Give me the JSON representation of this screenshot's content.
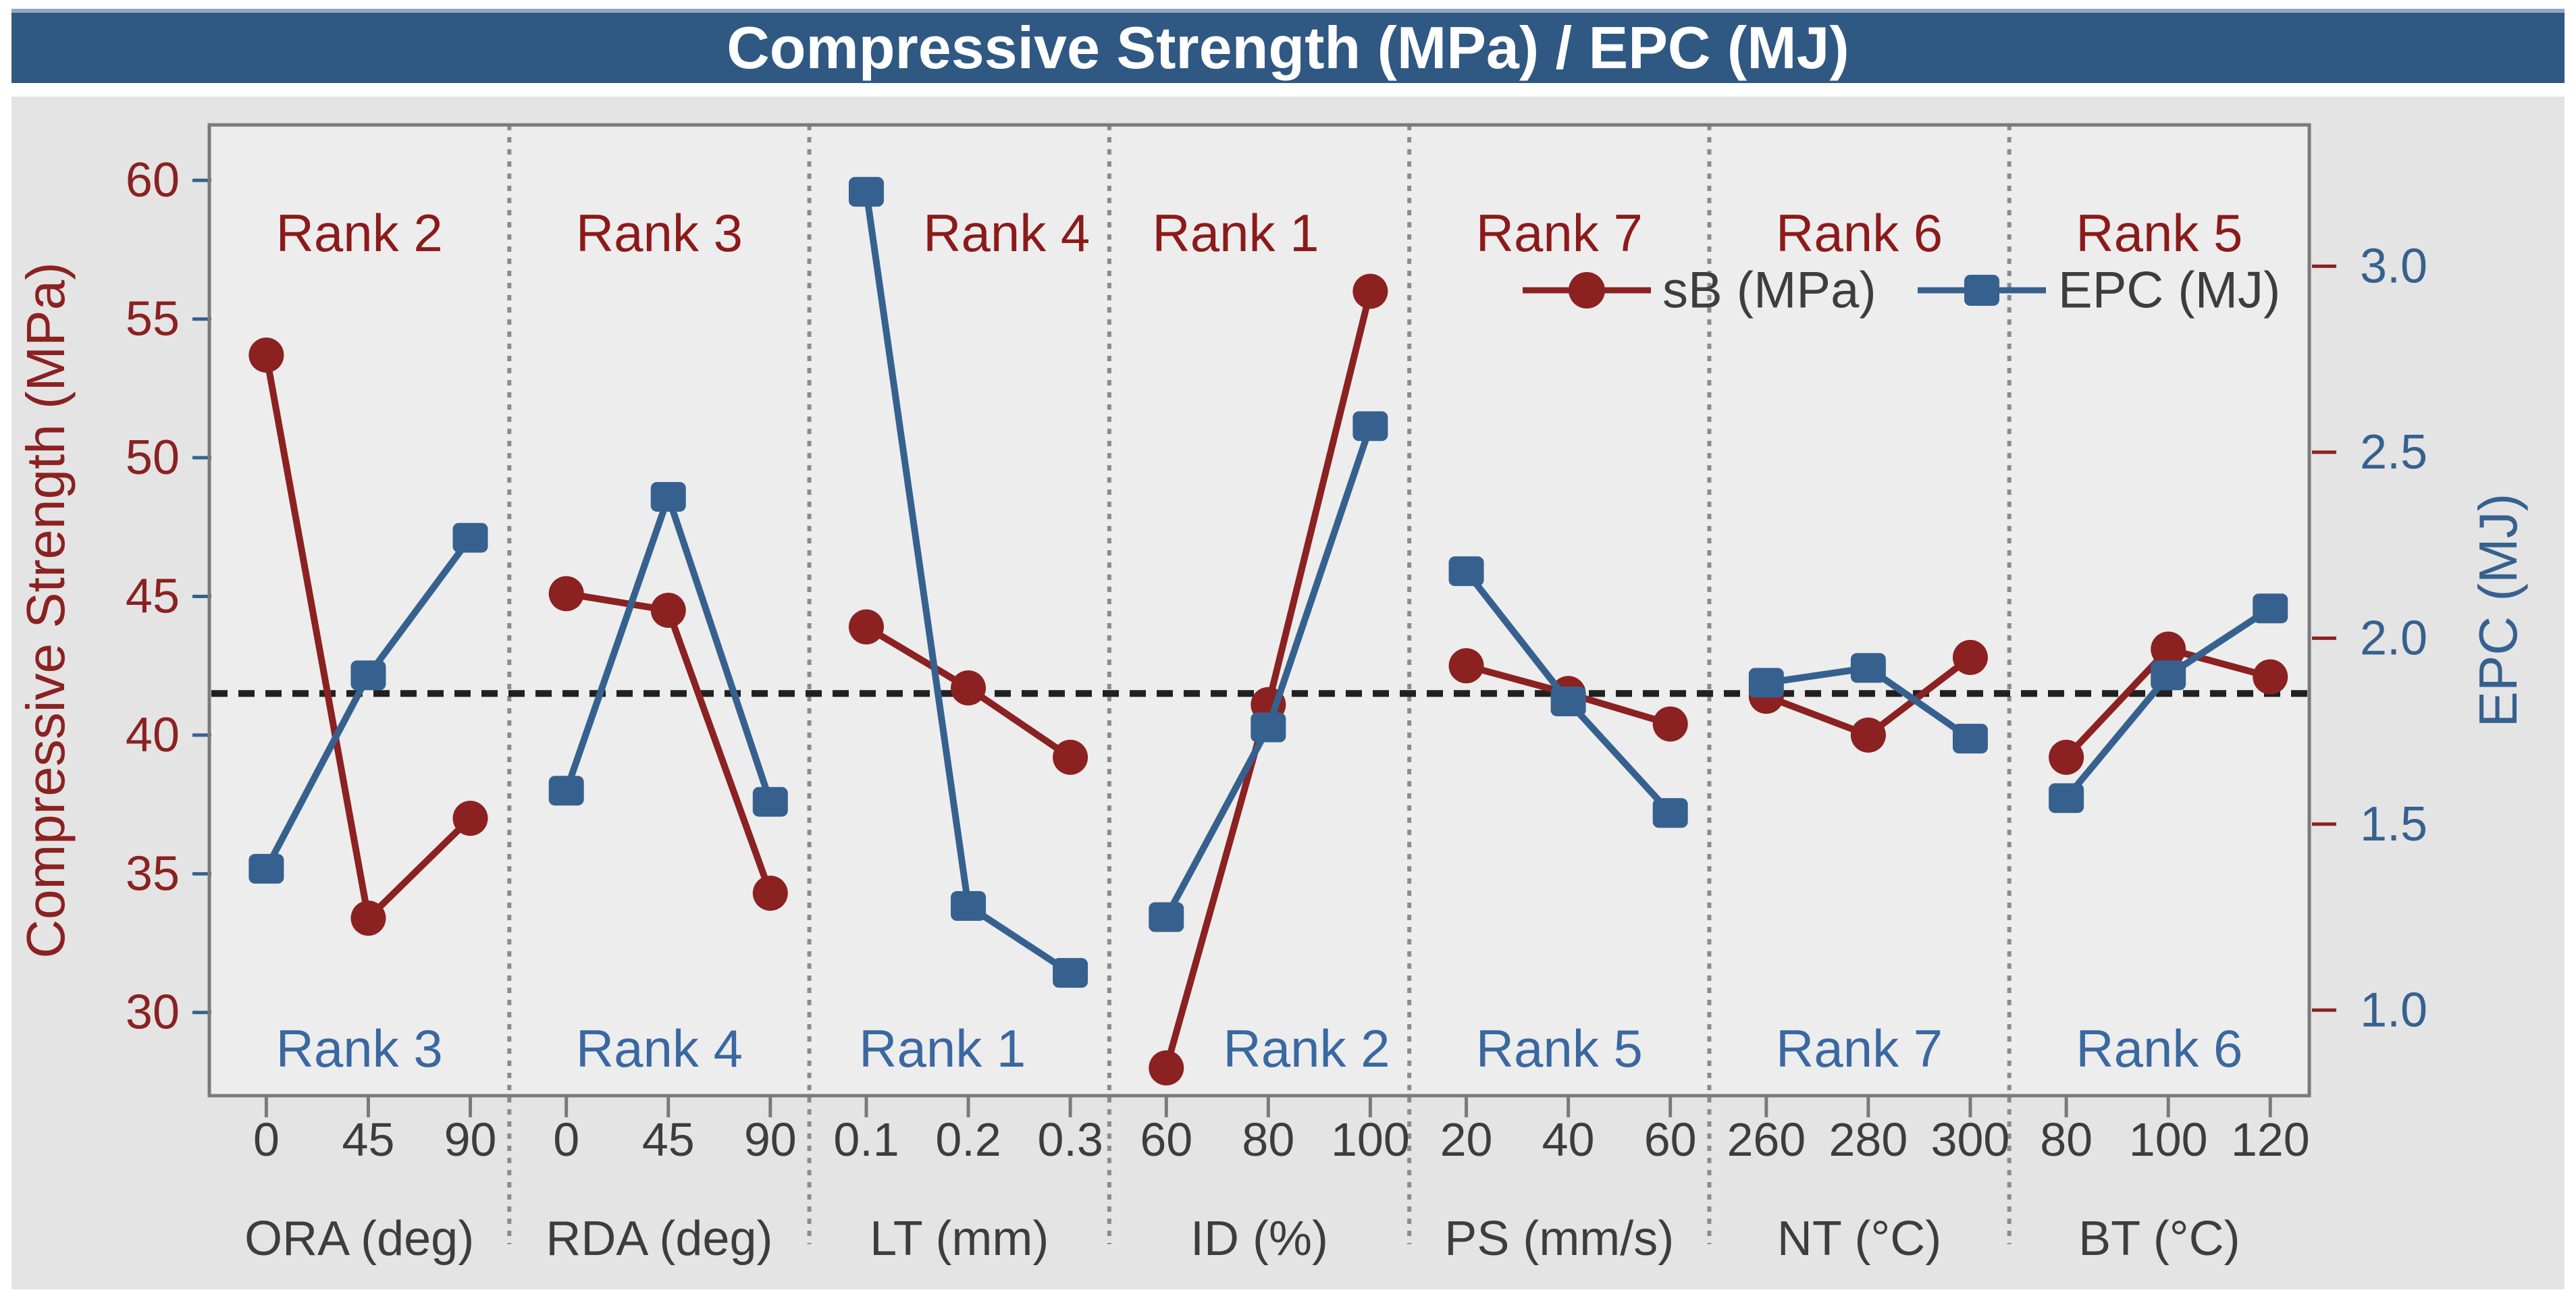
{
  "title": "Compressive Strength (MPa) / EPC (MJ)",
  "colors": {
    "title_bar": "#2F5883",
    "series_sB": "#8B2121",
    "series_EPC": "#36618F",
    "rank_sB": "#8C1A1A",
    "rank_EPC": "#3A68A0",
    "mean_line": "#202020",
    "axis_text": "#3D3D3D",
    "chart_bg": "#E4E4E4",
    "plot_bg": "#EDEDED",
    "frame": "#7A7A7A",
    "separator": "#8C8C8C"
  },
  "left_axis": {
    "label": "Compressive Strength (MPa)",
    "ticks": [
      60,
      55,
      50,
      45,
      40,
      35,
      30
    ]
  },
  "right_axis": {
    "label": "EPC (MJ)",
    "ticks": [
      3.0,
      2.5,
      2.0,
      1.5,
      1.0
    ]
  },
  "legend": [
    {
      "label": "sB (MPa)",
      "marker": "circle"
    },
    {
      "label": "EPC (MJ)",
      "marker": "square"
    }
  ],
  "chart_data": {
    "type": "line",
    "subtype": "main-effects-dual-axis",
    "title": "Compressive Strength (MPa) / EPC (MJ)",
    "ylabel_left": "Compressive Strength (MPa)",
    "ylabel_right": "EPC (MJ)",
    "sB_axis_range": [
      27.0,
      62.0
    ],
    "EPC_axis_range": [
      0.77,
      3.38
    ],
    "grand_mean_sB": 41.5,
    "grand_mean_EPC": 1.85,
    "grid": false,
    "panels": [
      {
        "factor": "ORA (deg)",
        "levels": [
          "0",
          "45",
          "90"
        ],
        "sB": [
          53.7,
          33.4,
          37.0
        ],
        "EPC": [
          1.38,
          1.9,
          2.27
        ],
        "rank_sB": "Rank 2",
        "rank_EPC": "Rank 3"
      },
      {
        "factor": "RDA (deg)",
        "levels": [
          "0",
          "45",
          "90"
        ],
        "sB": [
          45.1,
          44.5,
          34.3
        ],
        "EPC": [
          1.59,
          2.38,
          1.56
        ],
        "rank_sB": "Rank 3",
        "rank_EPC": "Rank 4"
      },
      {
        "factor": "LT (mm)",
        "levels": [
          "0.1",
          "0.2",
          "0.3"
        ],
        "sB": [
          43.9,
          41.7,
          39.2
        ],
        "EPC": [
          3.2,
          1.28,
          1.1
        ],
        "rank_sB": "Rank 4",
        "rank_EPC": "Rank 1"
      },
      {
        "factor": "ID (%)",
        "levels": [
          "60",
          "80",
          "100"
        ],
        "sB": [
          28.0,
          41.1,
          56.0
        ],
        "EPC": [
          1.25,
          1.76,
          2.57
        ],
        "rank_sB": "Rank 1",
        "rank_EPC": "Rank 2"
      },
      {
        "factor": "PS (mm/s)",
        "levels": [
          "20",
          "40",
          "60"
        ],
        "sB": [
          42.5,
          41.5,
          40.4
        ],
        "EPC": [
          2.18,
          1.83,
          1.53
        ],
        "rank_sB": "Rank 7",
        "rank_EPC": "Rank 5"
      },
      {
        "factor": "NT (°C)",
        "levels": [
          "260",
          "280",
          "300"
        ],
        "sB": [
          41.4,
          40.0,
          42.8
        ],
        "EPC": [
          1.88,
          1.92,
          1.73
        ],
        "rank_sB": "Rank 6",
        "rank_EPC": "Rank 7"
      },
      {
        "factor": "BT (°C)",
        "levels": [
          "80",
          "100",
          "120"
        ],
        "sB": [
          39.2,
          43.1,
          42.1
        ],
        "EPC": [
          1.57,
          1.9,
          2.08
        ],
        "rank_sB": "Rank 5",
        "rank_EPC": "Rank 6"
      }
    ]
  }
}
